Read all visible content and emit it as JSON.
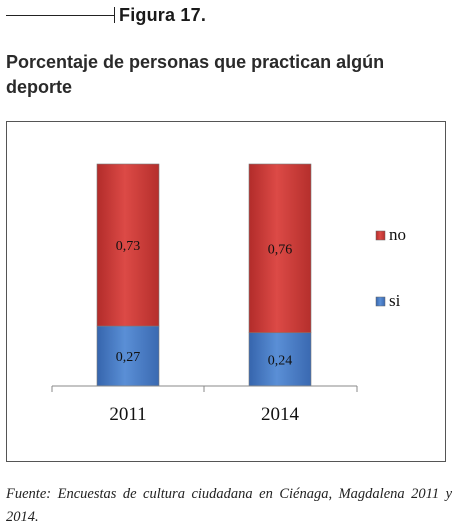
{
  "figure_label": "Figura 17.",
  "title": "Porcentaje de personas que practican algún deporte",
  "source": "Fuente: Encuestas de cultura ciudadana en Ciénaga, Magdalena 2011 y 2014.",
  "chart_data": {
    "type": "bar",
    "stacked": true,
    "categories": [
      "2011",
      "2014"
    ],
    "series": [
      {
        "name": "si",
        "values": [
          0.27,
          0.24
        ],
        "labels": [
          "0,27",
          "0,24"
        ],
        "color": "#4a7fc9"
      },
      {
        "name": "no",
        "values": [
          0.73,
          0.76
        ],
        "labels": [
          "0,73",
          "0,76"
        ],
        "color": "#cf3d3a"
      }
    ],
    "ylim": [
      0,
      1
    ],
    "legend_position": "right",
    "legend_order": [
      "no",
      "si"
    ],
    "grid": false
  }
}
